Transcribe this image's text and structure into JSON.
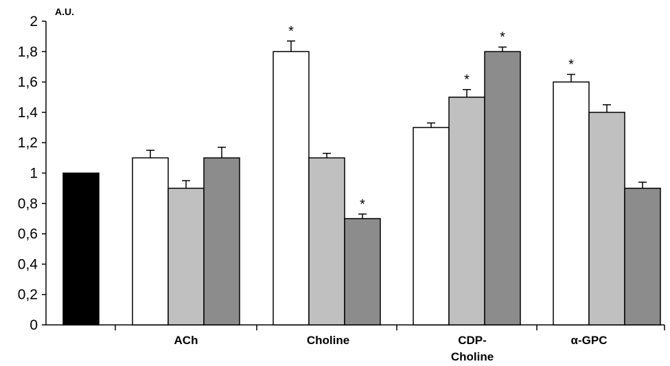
{
  "chart_data": {
    "type": "bar",
    "ylabel": "A.U.",
    "ylim": [
      0,
      2
    ],
    "yticks": [
      "0",
      "0,2",
      "0,4",
      "0,6",
      "0,8",
      "1",
      "1,2",
      "1,4",
      "1,6",
      "1,8",
      "2"
    ],
    "ytick_values": [
      0,
      0.2,
      0.4,
      0.6,
      0.8,
      1,
      1.2,
      1.4,
      1.6,
      1.8,
      2
    ],
    "grid": false,
    "colors": [
      "#000000",
      "#ffffff",
      "#c0c0c0",
      "#8c8c8c"
    ],
    "groups": [
      {
        "label": "",
        "label_lines": [],
        "bars": [
          {
            "value": 1.0,
            "error": 0,
            "color": "#000000",
            "sig": false
          }
        ]
      },
      {
        "label": "ACh",
        "label_lines": [
          "ACh"
        ],
        "bars": [
          {
            "value": 1.1,
            "error": 0.05,
            "color": "#ffffff",
            "sig": false
          },
          {
            "value": 0.9,
            "error": 0.05,
            "color": "#c0c0c0",
            "sig": false
          },
          {
            "value": 1.1,
            "error": 0.07,
            "color": "#8c8c8c",
            "sig": false
          }
        ]
      },
      {
        "label": "Choline",
        "label_lines": [
          "Choline"
        ],
        "bars": [
          {
            "value": 1.8,
            "error": 0.07,
            "color": "#ffffff",
            "sig": true
          },
          {
            "value": 1.1,
            "error": 0.03,
            "color": "#c0c0c0",
            "sig": false
          },
          {
            "value": 0.7,
            "error": 0.03,
            "color": "#8c8c8c",
            "sig": true
          }
        ]
      },
      {
        "label": "CDP-Choline",
        "label_lines": [
          "CDP-",
          "Choline"
        ],
        "bars": [
          {
            "value": 1.3,
            "error": 0.03,
            "color": "#ffffff",
            "sig": false
          },
          {
            "value": 1.5,
            "error": 0.05,
            "color": "#c0c0c0",
            "sig": true
          },
          {
            "value": 1.8,
            "error": 0.03,
            "color": "#8c8c8c",
            "sig": true
          }
        ]
      },
      {
        "label": "α-GPC",
        "label_lines": [
          "α-GPC"
        ],
        "bars": [
          {
            "value": 1.6,
            "error": 0.05,
            "color": "#ffffff",
            "sig": true
          },
          {
            "value": 1.4,
            "error": 0.05,
            "color": "#c0c0c0",
            "sig": false
          },
          {
            "value": 0.9,
            "error": 0.04,
            "color": "#8c8c8c",
            "sig": false
          }
        ]
      }
    ],
    "significance_marker": "*"
  }
}
